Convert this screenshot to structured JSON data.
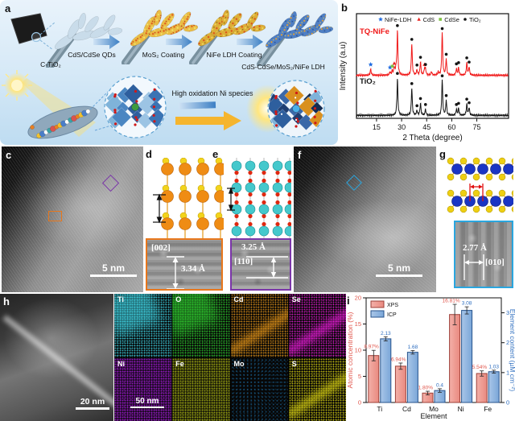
{
  "panel_a": {
    "label": "a",
    "flow_labels": {
      "start": "C-TiO₂",
      "step1": "CdS/CdSe QDs",
      "step2": "MoS₂ Coating",
      "step3": "NiFe LDH Coating",
      "product": "CdS-CdSe/MoS₂/NiFe LDH",
      "mechanism": "High oxidation Ni species"
    }
  },
  "panel_b": {
    "label": "b"
  },
  "panel_c": {
    "label": "c",
    "scalebar": "5 nm"
  },
  "panel_d": {
    "label": "d",
    "inset": {
      "plane": "[002]",
      "spacing": "3.34 Å"
    }
  },
  "panel_e": {
    "label": "e",
    "inset": {
      "plane": "[110]",
      "spacing": "3.25 Å"
    }
  },
  "panel_f": {
    "label": "f",
    "scalebar": "5 nm"
  },
  "panel_g": {
    "label": "g",
    "inset": {
      "plane": "[010]",
      "spacing": "2.77 Å"
    }
  },
  "panel_h": {
    "label": "h",
    "scalebar": "20 nm"
  },
  "eds": {
    "scalebar": "50 nm",
    "tiles": [
      {
        "el": "Ti",
        "color": "#3fd2e2",
        "pattern": "particle"
      },
      {
        "el": "O",
        "color": "#2ec82e",
        "pattern": "particle"
      },
      {
        "el": "Cd",
        "color": "#dd9018",
        "pattern": "streak"
      },
      {
        "el": "Se",
        "color": "#e21cd2",
        "pattern": "streak"
      },
      {
        "el": "Ni",
        "color": "#a81cdc",
        "pattern": "uniform"
      },
      {
        "el": "Fe",
        "color": "#aab414",
        "pattern": "uniform"
      },
      {
        "el": "Mo",
        "color": "#1f7fc0",
        "pattern": "sparse"
      },
      {
        "el": "S",
        "color": "#d6ce12",
        "pattern": "streak"
      }
    ]
  },
  "panel_i": {
    "label": "i"
  },
  "chart_data": [
    {
      "id": "xrd",
      "type": "line",
      "xlabel": "2 Theta (degree)",
      "ylabel": "Intensity (a.u)",
      "x_range": [
        3,
        94
      ],
      "x_ticks": [
        15,
        30,
        45,
        60,
        75
      ],
      "legend": [
        {
          "marker": "star",
          "color": "#1f6be0",
          "label": "NiFe-LDH"
        },
        {
          "marker": "triangle",
          "color": "#e8231f",
          "label": "CdS"
        },
        {
          "marker": "square",
          "color": "#7fc241",
          "label": "CdSe"
        },
        {
          "marker": "circle",
          "color": "#141414",
          "label": "TiO₂"
        }
      ],
      "series": [
        {
          "name": "TQ-NiFe",
          "color": "#f01818",
          "baseline": 0.72,
          "label_xy": [
            27,
            42
          ],
          "peaks": [
            [
              11.5,
              0.1
            ],
            [
              23.1,
              0.05
            ],
            [
              24.4,
              0.07
            ],
            [
              25.6,
              0.12
            ],
            [
              26.6,
              0.09
            ],
            [
              27.5,
              0.75
            ],
            [
              36.1,
              0.52
            ],
            [
              39.2,
              0.09
            ],
            [
              41.3,
              0.22
            ],
            [
              43.7,
              0.1
            ],
            [
              44.3,
              0.1
            ],
            [
              47.9,
              0.06
            ],
            [
              51.9,
              0.05
            ],
            [
              54.3,
              0.7
            ],
            [
              56.7,
              0.27
            ],
            [
              62.8,
              0.11
            ],
            [
              64.1,
              0.13
            ],
            [
              69.0,
              0.21
            ],
            [
              70.4,
              0.14
            ]
          ],
          "markers": [
            [
              "star",
              11.5
            ],
            [
              "star",
              23.1
            ],
            [
              "square",
              24.4
            ],
            [
              "triangle",
              25.6
            ],
            [
              "circle",
              27.5
            ],
            [
              "circle",
              36.1
            ],
            [
              "circle",
              39.2
            ],
            [
              "circle",
              41.3
            ],
            [
              "triangle",
              43.7
            ],
            [
              "circle",
              44.3
            ],
            [
              "circle",
              54.3
            ],
            [
              "circle",
              56.7
            ],
            [
              "circle",
              62.8
            ],
            [
              "circle",
              64.1
            ],
            [
              "circle",
              69.0
            ],
            [
              "circle",
              70.4
            ]
          ]
        },
        {
          "name": "TiO₂",
          "color": "#141414",
          "baseline": 0.05,
          "label_xy": [
            27,
            104
          ],
          "peaks": [
            [
              27.5,
              0.62
            ],
            [
              36.1,
              0.45
            ],
            [
              39.2,
              0.08
            ],
            [
              41.3,
              0.2
            ],
            [
              44.3,
              0.1
            ],
            [
              54.3,
              0.58
            ],
            [
              56.7,
              0.25
            ],
            [
              62.8,
              0.1
            ],
            [
              64.1,
              0.12
            ],
            [
              69.0,
              0.19
            ],
            [
              70.4,
              0.13
            ]
          ],
          "markers": [
            [
              "circle",
              27.5
            ],
            [
              "circle",
              36.1
            ],
            [
              "circle",
              39.2
            ],
            [
              "circle",
              41.3
            ],
            [
              "circle",
              44.3
            ],
            [
              "circle",
              54.3
            ],
            [
              "circle",
              56.7
            ],
            [
              "circle",
              62.8
            ],
            [
              "circle",
              64.1
            ],
            [
              "circle",
              69.0
            ],
            [
              "circle",
              70.4
            ]
          ]
        }
      ]
    },
    {
      "id": "composition",
      "type": "bar",
      "categories": [
        "Ti",
        "Cd",
        "Mo",
        "Ni",
        "Fe"
      ],
      "xlabel": "Element",
      "ylabel_left": "Atomic concentration (%)",
      "ylabel_right": "Element content (µM cm⁻²)",
      "ylim_left": [
        0,
        20
      ],
      "ylim_right": [
        0,
        3.5
      ],
      "yticks_left": [
        0,
        5,
        10,
        15,
        20
      ],
      "yticks_right": [
        0,
        1,
        2,
        3
      ],
      "series": [
        {
          "name": "XPS",
          "axis": "left",
          "fill_light": "#f3b0a8",
          "fill": "#e9897f",
          "border": "#9c4038",
          "values": [
            8.97,
            6.94,
            1.8,
            16.81,
            5.54
          ],
          "labels": [
            "8.97%",
            "6.94%",
            "1.80%",
            "16.81%",
            "5.54%"
          ],
          "errors": [
            1.0,
            0.6,
            0.35,
            1.95,
            0.5
          ],
          "label_color": "#e0564c"
        },
        {
          "name": "ICP",
          "axis": "right",
          "fill_light": "#a9c6e8",
          "fill": "#7aa6d8",
          "border": "#27538c",
          "values": [
            2.13,
            1.68,
            0.4,
            3.08,
            1.03
          ],
          "labels": [
            "2.13",
            "1.68",
            "0.4",
            "3.08",
            "1.03"
          ],
          "errors": [
            0.07,
            0.06,
            0.06,
            0.12,
            0.05
          ],
          "label_color": "#2f6fc0"
        }
      ]
    }
  ]
}
